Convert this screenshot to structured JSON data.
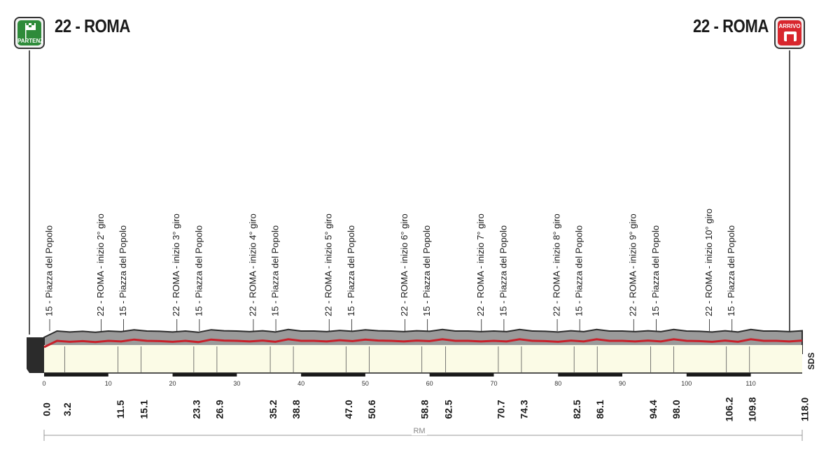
{
  "header": {
    "start_title": "22 - ROMA",
    "end_title": "22 - ROMA",
    "start_badge": "PARTENZA",
    "end_badge": "ARRIVO"
  },
  "colors": {
    "profile_gray": "#9a9a9a",
    "profile_dark": "#2b2b2b",
    "road_red": "#c8202a",
    "base_fill": "#fbfbe6",
    "start_green": "#2e8b3a",
    "end_red": "#d8262d"
  },
  "chart_data": {
    "type": "area",
    "title": "",
    "xlabel": "",
    "ylabel": "",
    "xlim": [
      0,
      118
    ],
    "x_ticks": [
      "0",
      "10",
      "20",
      "30",
      "40",
      "50",
      "60",
      "70",
      "80",
      "90",
      "100",
      "110"
    ],
    "x_tick_values": [
      0,
      10,
      20,
      30,
      40,
      50,
      60,
      70,
      80,
      90,
      100,
      110
    ],
    "km_markers": [
      {
        "km": 0.0,
        "label": "0.0"
      },
      {
        "km": 3.2,
        "label": "3.2"
      },
      {
        "km": 11.5,
        "label": "11.5"
      },
      {
        "km": 15.1,
        "label": "15.1"
      },
      {
        "km": 23.3,
        "label": "23.3"
      },
      {
        "km": 26.9,
        "label": "26.9"
      },
      {
        "km": 35.2,
        "label": "35.2"
      },
      {
        "km": 38.8,
        "label": "38.8"
      },
      {
        "km": 47.0,
        "label": "47.0"
      },
      {
        "km": 50.6,
        "label": "50.6"
      },
      {
        "km": 58.8,
        "label": "58.8"
      },
      {
        "km": 62.5,
        "label": "62.5"
      },
      {
        "km": 70.7,
        "label": "70.7"
      },
      {
        "km": 74.3,
        "label": "74.3"
      },
      {
        "km": 82.5,
        "label": "82.5"
      },
      {
        "km": 86.1,
        "label": "86.1"
      },
      {
        "km": 94.4,
        "label": "94.4"
      },
      {
        "km": 98.0,
        "label": "98.0"
      },
      {
        "km": 106.2,
        "label": "106.2"
      },
      {
        "km": 109.8,
        "label": "109.8"
      },
      {
        "km": 118.0,
        "label": "118.0"
      }
    ],
    "point_labels": [
      {
        "km": 0.0,
        "text": "15 - Piazza del Popolo"
      },
      {
        "km": 8.0,
        "text": "22 - ROMA - inizio 2° giro"
      },
      {
        "km": 11.5,
        "text": "15 - Piazza del Popolo"
      },
      {
        "km": 19.8,
        "text": "22 - ROMA - inizio 3° giro"
      },
      {
        "km": 23.3,
        "text": "15 - Piazza del Popolo"
      },
      {
        "km": 31.7,
        "text": "22 - ROMA - inizio 4° giro"
      },
      {
        "km": 35.2,
        "text": "15 - Piazza del Popolo"
      },
      {
        "km": 43.5,
        "text": "22 - ROMA - inizio 5° giro"
      },
      {
        "km": 47.0,
        "text": "15 - Piazza del Popolo"
      },
      {
        "km": 55.3,
        "text": "22 - ROMA - inizio 6° giro"
      },
      {
        "km": 58.8,
        "text": "15 - Piazza del Popolo"
      },
      {
        "km": 67.2,
        "text": "22 - ROMA - inizio 7° giro"
      },
      {
        "km": 70.7,
        "text": "15 - Piazza del Popolo"
      },
      {
        "km": 79.0,
        "text": "22 - ROMA - inizio 8° giro"
      },
      {
        "km": 82.5,
        "text": "15 - Piazza del Popolo"
      },
      {
        "km": 90.9,
        "text": "22 - ROMA - inizio 9° giro"
      },
      {
        "km": 94.4,
        "text": "15 - Piazza del Popolo"
      },
      {
        "km": 102.7,
        "text": "22 - ROMA - inizio 10° giro"
      },
      {
        "km": 106.2,
        "text": "15 - Piazza del Popolo"
      }
    ],
    "scale_label": "RM",
    "side_label": "SDS",
    "elevation_profile": {
      "x": [
        0,
        2,
        4,
        6,
        8,
        10,
        12,
        14,
        16,
        18,
        20,
        22,
        24,
        26,
        28,
        30,
        32,
        34,
        36,
        38,
        40,
        42,
        44,
        46,
        48,
        50,
        52,
        54,
        56,
        58,
        60,
        62,
        64,
        66,
        68,
        70,
        72,
        74,
        76,
        78,
        80,
        82,
        84,
        86,
        88,
        90,
        92,
        94,
        96,
        98,
        100,
        102,
        104,
        106,
        108,
        110,
        112,
        114,
        116,
        118
      ],
      "y": [
        20,
        40,
        37,
        39,
        36,
        40,
        38,
        44,
        40,
        39,
        37,
        40,
        36,
        44,
        41,
        40,
        38,
        41,
        37,
        45,
        40,
        40,
        38,
        42,
        39,
        44,
        41,
        40,
        38,
        41,
        39,
        45,
        40,
        40,
        38,
        40,
        38,
        45,
        40,
        39,
        37,
        41,
        38,
        45,
        40,
        40,
        38,
        41,
        38,
        45,
        40,
        39,
        37,
        41,
        37,
        45,
        40,
        40,
        38,
        41
      ]
    }
  }
}
